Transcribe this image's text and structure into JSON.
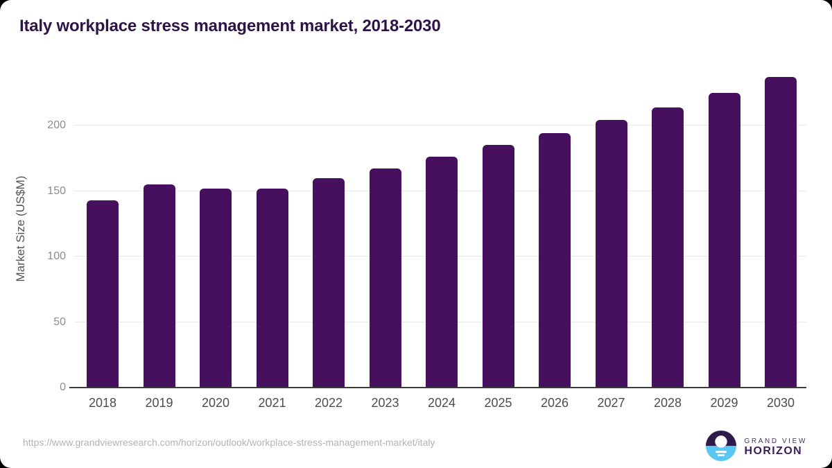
{
  "title": "Italy workplace stress management market, 2018-2030",
  "chart_data": {
    "type": "bar",
    "categories": [
      "2018",
      "2019",
      "2020",
      "2021",
      "2022",
      "2023",
      "2024",
      "2025",
      "2026",
      "2027",
      "2028",
      "2029",
      "2030"
    ],
    "values": [
      143,
      155,
      152,
      152,
      160,
      167,
      176,
      185,
      194,
      204,
      214,
      225,
      237
    ],
    "title": "Italy workplace stress management market, 2018-2030",
    "xlabel": "",
    "ylabel": "Market Size (US$M)",
    "ylim": [
      0,
      243
    ],
    "yticks": [
      0,
      50,
      100,
      150,
      200
    ],
    "grid": "horizontal",
    "legend": "none",
    "bar_color": "#46105e"
  },
  "footer": {
    "source_url": "https://www.grandviewresearch.com/horizon/outlook/workplace-stress-management-market/italy",
    "logo": {
      "line1": "GRAND VIEW",
      "line2": "HORIZON"
    }
  },
  "colors": {
    "background": "#ffffff",
    "outside": "#000000",
    "title_text": "#2d1347",
    "bar": "#46105e",
    "gridline": "#e9e9e9",
    "axis_line": "#3a3a3a",
    "y_tick_text": "#8c8c8c",
    "x_tick_text": "#4c4c4c",
    "source_text": "#b3b3b3",
    "logo_dark": "#2d1b49",
    "logo_blue": "#5bc6f2"
  }
}
